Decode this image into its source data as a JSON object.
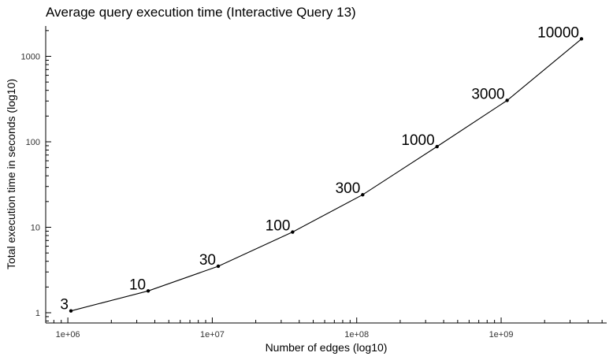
{
  "chart_data": {
    "type": "line",
    "title": "Average query execution time (Interactive Query 13)",
    "xlabel": "Number of edges (log10)",
    "ylabel": "Total execution time in seconds (log10)",
    "x_scale": "log10",
    "y_scale": "log10",
    "xlim": [
      800000,
      7000000000
    ],
    "ylim": [
      0.85,
      2200
    ],
    "x_ticks": [
      {
        "value": 1000000,
        "label": "1e+06"
      },
      {
        "value": 10000000,
        "label": "1e+07"
      },
      {
        "value": 100000000,
        "label": "1e+08"
      },
      {
        "value": 1000000000,
        "label": "1e+09"
      }
    ],
    "y_ticks": [
      {
        "value": 1,
        "label": "1"
      },
      {
        "value": 10,
        "label": "10"
      },
      {
        "value": 100,
        "label": "100"
      },
      {
        "value": 1000,
        "label": "1000"
      }
    ],
    "grid": false,
    "legend": "none",
    "points": [
      {
        "x": 1050000,
        "y": 1.05,
        "label": "3"
      },
      {
        "x": 3600000,
        "y": 1.8,
        "label": "10"
      },
      {
        "x": 11000000,
        "y": 3.5,
        "label": "30"
      },
      {
        "x": 36000000,
        "y": 8.8,
        "label": "100"
      },
      {
        "x": 110000000,
        "y": 24,
        "label": "300"
      },
      {
        "x": 360000000,
        "y": 88,
        "label": "1000"
      },
      {
        "x": 1100000000,
        "y": 305,
        "label": "3000"
      },
      {
        "x": 3600000000,
        "y": 1600,
        "label": "10000"
      }
    ]
  }
}
